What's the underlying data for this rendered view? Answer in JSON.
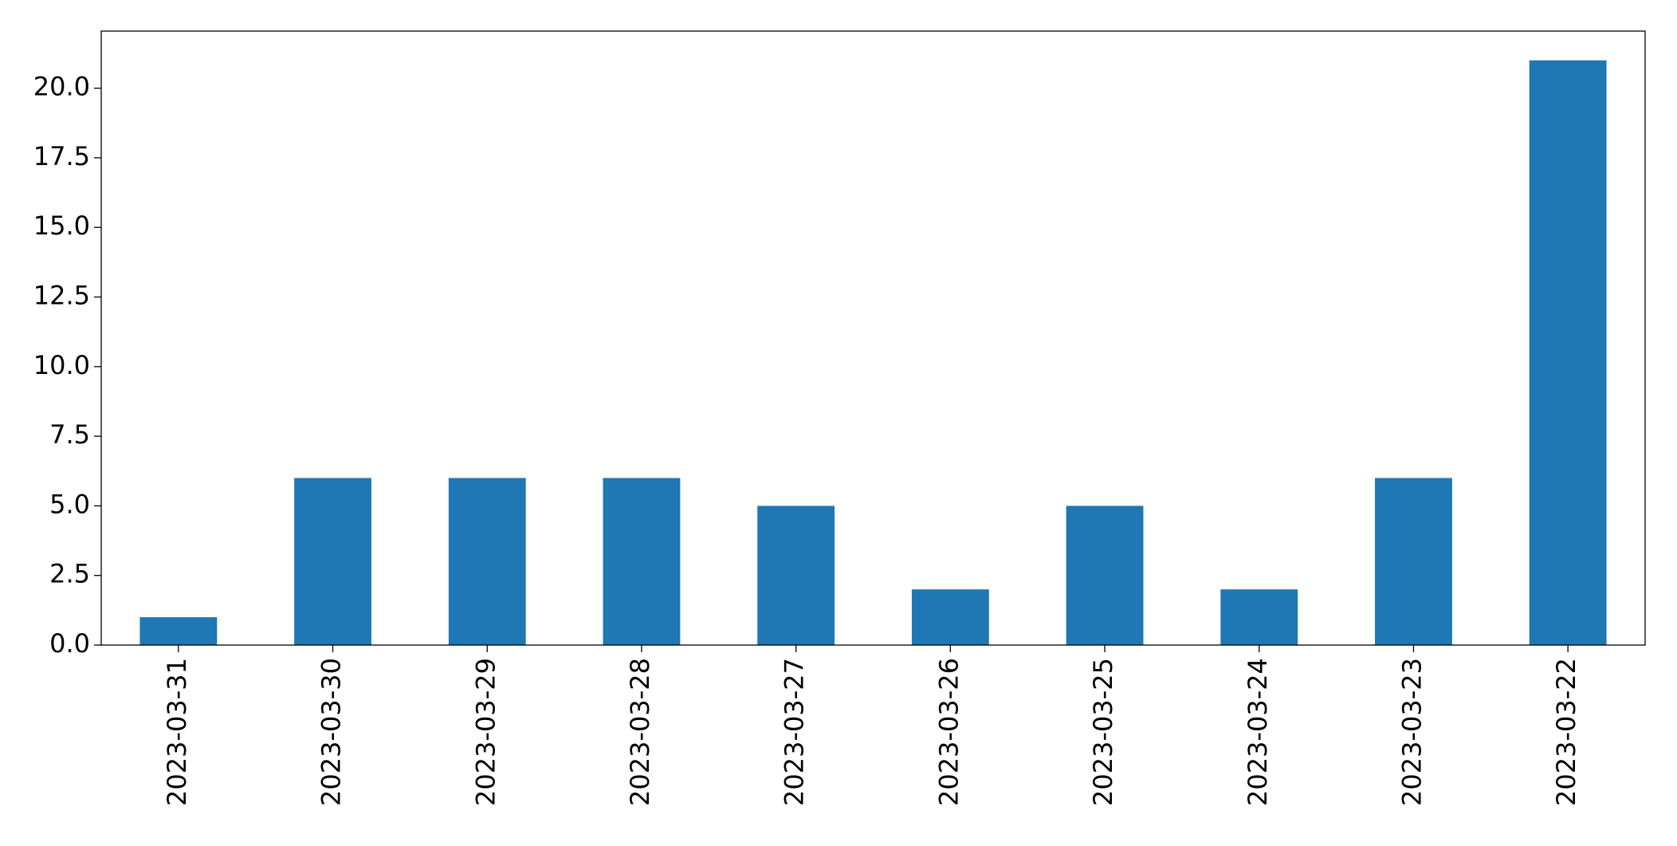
{
  "chart_data": {
    "type": "bar",
    "categories": [
      "2023-03-31",
      "2023-03-30",
      "2023-03-29",
      "2023-03-28",
      "2023-03-27",
      "2023-03-26",
      "2023-03-25",
      "2023-03-24",
      "2023-03-23",
      "2023-03-22"
    ],
    "values": [
      1,
      6,
      6,
      6,
      5,
      2,
      5,
      2,
      6,
      21
    ],
    "color": "#1f77b4",
    "ylim": [
      0,
      22.05
    ],
    "yticks": [
      {
        "value": 0,
        "label": "0.0"
      },
      2.5,
      {
        "value": 5,
        "label": "5.0"
      },
      7.5,
      {
        "value": 10,
        "label": "10.0"
      },
      12.5,
      {
        "value": 15,
        "label": "15.0"
      },
      17.5,
      {
        "value": 20,
        "label": "20.0"
      }
    ],
    "grid": false
  }
}
